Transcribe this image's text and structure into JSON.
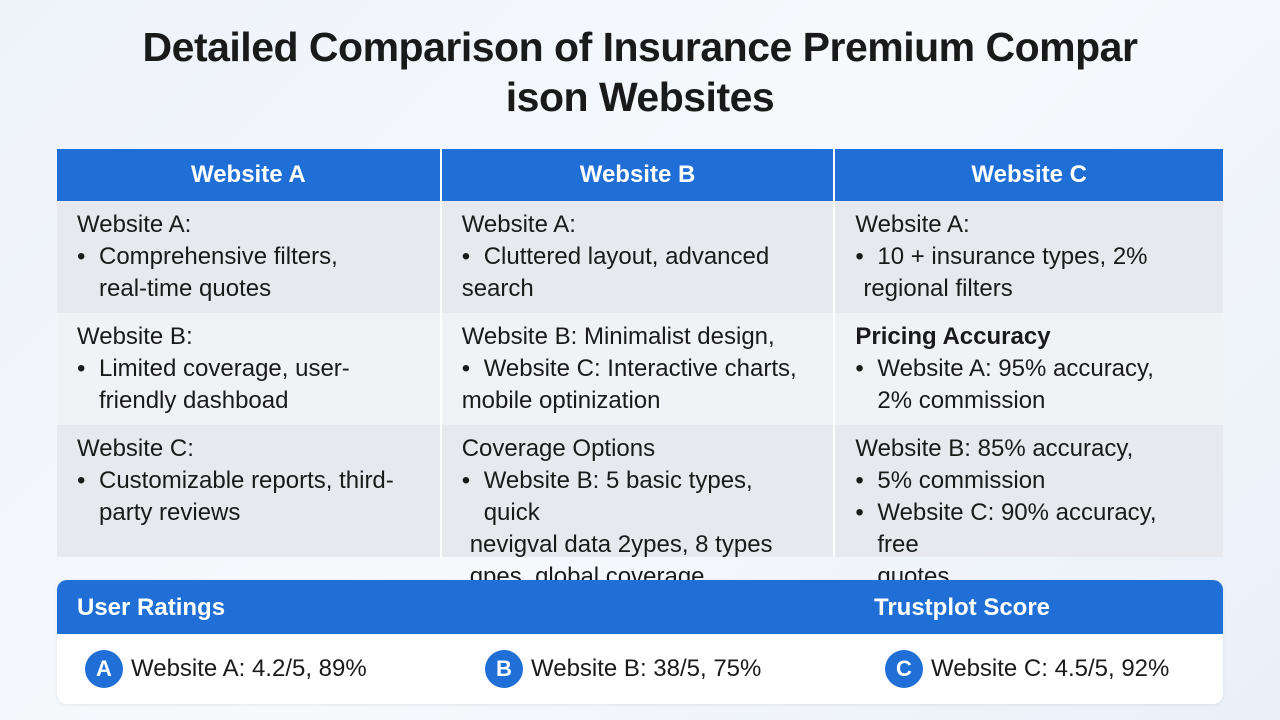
{
  "title": {
    "line1": "Detailed Comparison of Insurance Premium Compar",
    "line2": "ison Websites"
  },
  "table": {
    "headers": [
      "Website A",
      "Website B",
      "Website C"
    ],
    "col_a": [
      {
        "heading": "Website A:",
        "lines": [
          "Comprehensive filters,",
          "real-time quotes"
        ]
      },
      {
        "heading": "Website B:",
        "lines": [
          "Limited coverage, user-",
          "friendly dashboad"
        ]
      },
      {
        "heading": "Website C:",
        "lines": [
          "Customizable reports, third-",
          "party reviews"
        ]
      }
    ],
    "col_b": [
      {
        "heading": "Website A:",
        "lines": [
          "Cluttered layout, advanced",
          "search"
        ]
      },
      {
        "line1": "Website B: Minimalist design,",
        "line2": "Website C: Interactive charts,",
        "line3": "mobile optinization"
      },
      {
        "heading": "Coverage Options",
        "lines": [
          "Website B: 5 basic types, quick",
          "nevigval data 2ypes, 8 types",
          "qpes, global coverage"
        ]
      }
    ],
    "col_c": [
      {
        "heading": "Website A:",
        "lines": [
          "10 + insurance types, 2%",
          "regional filters"
        ]
      },
      {
        "heading": "Pricing Accuracy",
        "lines": [
          "Website A: 95% accuracy,",
          "2% commission"
        ]
      },
      {
        "line1": "Website B: 85% accuracy,",
        "line2": "5% commission",
        "line3": "Website C: 90% accuracy, free",
        "line4": "quotes"
      }
    ]
  },
  "ratings": {
    "header_left": "User Ratings",
    "header_right": "Trustplot Score",
    "items": [
      {
        "badge": "A",
        "text": "Website A: 4.2/5, 89%"
      },
      {
        "badge": "B",
        "text": "Website B: 38/5, 75%"
      },
      {
        "badge": "C",
        "text": "Website C: 4.5/5, 92%"
      }
    ]
  },
  "colors": {
    "accent": "#1f6fd6",
    "row_alt": "#e7e9ee",
    "row_plain": "#f1f2f5"
  }
}
